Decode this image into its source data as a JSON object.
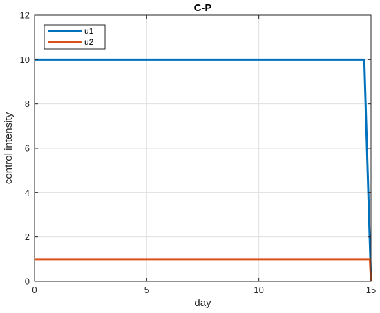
{
  "chart_data": {
    "type": "line",
    "title": "C-P",
    "xlabel": "day",
    "ylabel": "control intensity",
    "xlim": [
      0,
      15
    ],
    "ylim": [
      0,
      12
    ],
    "xticks": [
      0,
      5,
      10,
      15
    ],
    "yticks": [
      0,
      2,
      4,
      6,
      8,
      10,
      12
    ],
    "grid": true,
    "legend_position": "top-left",
    "series": [
      {
        "name": "u1",
        "color": "#0072bd",
        "x": [
          0,
          14.7,
          15
        ],
        "y": [
          10,
          10,
          0
        ]
      },
      {
        "name": "u2",
        "color": "#d95319",
        "x": [
          0,
          14.95,
          15
        ],
        "y": [
          1,
          1,
          0
        ]
      }
    ]
  }
}
